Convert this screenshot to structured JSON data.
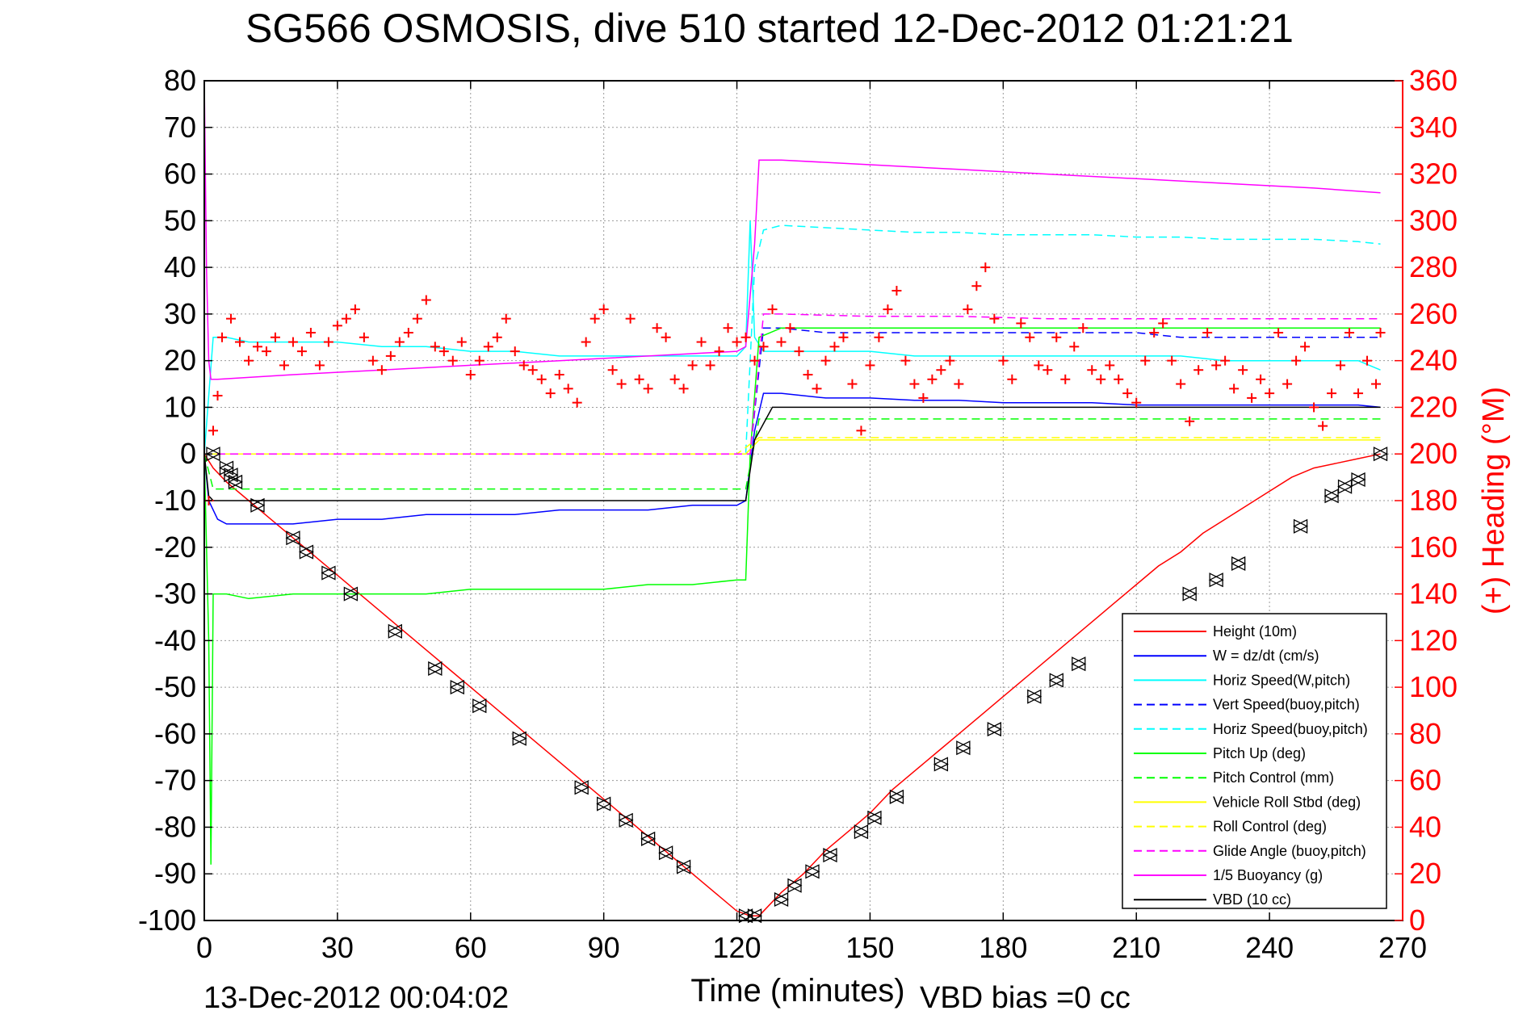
{
  "chart_data": {
    "type": "line",
    "title": "SG566 OSMOSIS, dive 510 started 12-Dec-2012 01:21:21",
    "xlabel": "Time (minutes)",
    "ylabel_right": "(+) Heading (°M)",
    "footer_left": "13-Dec-2012 00:04:02",
    "footer_right": "VBD bias =0 cc",
    "xlim": [
      0,
      270
    ],
    "ylim": [
      -100,
      80
    ],
    "ylim_right": [
      0,
      360
    ],
    "x_ticks": [
      "0",
      "30",
      "60",
      "90",
      "120",
      "150",
      "180",
      "210",
      "240",
      "270"
    ],
    "y_ticks": [
      "80",
      "70",
      "60",
      "50",
      "40",
      "30",
      "20",
      "10",
      "0",
      "-10",
      "-20",
      "-30",
      "-40",
      "-50",
      "-60",
      "-70",
      "-80",
      "-90",
      "-100"
    ],
    "y_right_ticks": [
      "360",
      "340",
      "320",
      "300",
      "280",
      "260",
      "240",
      "220",
      "200",
      "180",
      "160",
      "140",
      "120",
      "100",
      "80",
      "60",
      "40",
      "20",
      "0"
    ],
    "grid": true,
    "legend_position": "bottom-right",
    "colors": {
      "red": "#ff0000",
      "blue": "#0000ff",
      "cyan": "#00ffff",
      "green": "#00ff00",
      "yellow": "#ffff00",
      "magenta": "#ff00ff",
      "black": "#000000"
    },
    "series": [
      {
        "name": "Height (10m)",
        "color": "#ff0000",
        "style": "solid",
        "x": [
          0,
          2,
          5,
          10,
          15,
          20,
          25,
          30,
          35,
          40,
          45,
          50,
          55,
          60,
          65,
          70,
          75,
          80,
          85,
          90,
          95,
          100,
          105,
          110,
          115,
          120,
          123,
          125,
          130,
          135,
          140,
          145,
          150,
          155,
          160,
          165,
          170,
          175,
          180,
          185,
          190,
          195,
          200,
          205,
          210,
          215,
          220,
          225,
          230,
          235,
          240,
          245,
          250,
          255,
          260,
          265
        ],
        "y": [
          0,
          -3,
          -6,
          -10,
          -14,
          -18,
          -22,
          -26,
          -30,
          -34,
          -38,
          -42,
          -46,
          -50,
          -54,
          -58,
          -62,
          -66,
          -70,
          -74,
          -78,
          -82,
          -86,
          -90,
          -94,
          -98,
          -99,
          -99,
          -94,
          -90,
          -85,
          -81,
          -77,
          -72,
          -68,
          -64,
          -60,
          -56,
          -52,
          -48,
          -44,
          -40,
          -36,
          -32,
          -28,
          -24,
          -21,
          -17,
          -14,
          -11,
          -8,
          -5,
          -3,
          -2,
          -1,
          0
        ]
      },
      {
        "name": "W = dz/dt (cm/s)",
        "color": "#0000ff",
        "style": "solid",
        "x": [
          0,
          1,
          3,
          5,
          10,
          20,
          30,
          40,
          50,
          60,
          70,
          80,
          90,
          100,
          110,
          120,
          122,
          124,
          126,
          130,
          140,
          150,
          160,
          170,
          180,
          190,
          200,
          210,
          220,
          230,
          240,
          250,
          260,
          265
        ],
        "y": [
          0,
          -10,
          -14,
          -15,
          -15,
          -15,
          -14,
          -14,
          -13,
          -13,
          -13,
          -12,
          -12,
          -12,
          -11,
          -11,
          -10,
          5,
          13,
          13,
          12,
          12,
          11.5,
          11.5,
          11,
          11,
          11,
          10.5,
          10.5,
          10.5,
          10.5,
          10.5,
          10.5,
          10
        ]
      },
      {
        "name": "Horiz Speed(W,pitch)",
        "color": "#00ffff",
        "style": "solid",
        "x": [
          0,
          2,
          5,
          10,
          20,
          30,
          40,
          50,
          60,
          70,
          80,
          90,
          100,
          110,
          120,
          122,
          123,
          124,
          126,
          130,
          140,
          150,
          160,
          170,
          180,
          190,
          200,
          210,
          220,
          230,
          240,
          250,
          260,
          265
        ],
        "y": [
          0,
          25,
          25,
          24,
          24,
          24,
          23,
          23,
          22,
          22,
          21,
          21,
          21,
          21,
          21,
          23,
          50,
          25,
          22,
          22,
          22,
          22,
          21,
          21,
          21,
          21,
          21,
          21,
          21,
          20,
          20,
          20,
          20,
          18
        ]
      },
      {
        "name": "Vert Speed(buoy,pitch)",
        "color": "#0000ff",
        "style": "dashed",
        "x": [
          0,
          2,
          5,
          120,
          123,
          126,
          130,
          140,
          150,
          160,
          170,
          180,
          190,
          200,
          210,
          220,
          230,
          240,
          250,
          260,
          265
        ],
        "y": [
          0,
          0,
          0,
          0,
          0,
          27,
          27,
          26,
          26,
          26,
          26,
          26,
          26,
          26,
          26,
          25,
          25,
          25,
          25,
          25,
          25
        ]
      },
      {
        "name": "Horiz Speed(buoy,pitch)",
        "color": "#00ffff",
        "style": "dashed",
        "x": [
          0,
          2,
          5,
          120,
          122,
          124,
          126,
          130,
          140,
          150,
          160,
          170,
          180,
          190,
          200,
          210,
          220,
          230,
          240,
          250,
          260,
          265
        ],
        "y": [
          0,
          0,
          0,
          0,
          0,
          40,
          48,
          49,
          48.5,
          48,
          47.5,
          47.5,
          47,
          47,
          47,
          46.5,
          46.5,
          46,
          46,
          46,
          45.5,
          45
        ]
      },
      {
        "name": "Pitch Up (deg)",
        "color": "#00ff00",
        "style": "solid",
        "x": [
          0,
          1,
          1.5,
          2,
          3,
          5,
          10,
          20,
          30,
          40,
          50,
          60,
          70,
          80,
          90,
          100,
          110,
          120,
          122,
          123,
          125,
          130,
          140,
          150,
          160,
          170,
          180,
          190,
          200,
          210,
          220,
          230,
          240,
          250,
          260,
          265
        ],
        "y": [
          0,
          -40,
          -88,
          -30,
          -30,
          -30,
          -31,
          -30,
          -30,
          -30,
          -30,
          -29,
          -29,
          -29,
          -29,
          -28,
          -28,
          -27,
          -27,
          0,
          25,
          27,
          27,
          27,
          27,
          27,
          27,
          27,
          27,
          27,
          27,
          27,
          27,
          27,
          27,
          27
        ]
      },
      {
        "name": "Pitch Control (mm)",
        "color": "#00ff00",
        "style": "dashed",
        "x": [
          0,
          2,
          5,
          120,
          122,
          125,
          130,
          265
        ],
        "y": [
          0,
          -7.5,
          -7.5,
          -7.5,
          -7.5,
          7.5,
          7.5,
          7.5
        ]
      },
      {
        "name": "Vehicle Roll Stbd (deg)",
        "color": "#ffff00",
        "style": "solid",
        "x": [
          0,
          5,
          20,
          40,
          60,
          80,
          100,
          120,
          122,
          125,
          130,
          150,
          170,
          190,
          210,
          230,
          250,
          265
        ],
        "y": [
          0,
          0,
          0,
          0,
          0,
          0,
          0,
          0,
          0,
          3,
          3,
          3,
          3,
          3,
          3,
          3,
          3,
          3
        ]
      },
      {
        "name": "Roll Control (deg)",
        "color": "#ffff00",
        "style": "dashed",
        "x": [
          0,
          5,
          20,
          40,
          60,
          80,
          100,
          120,
          125,
          265
        ],
        "y": [
          0,
          0,
          0,
          0,
          0,
          0,
          0,
          0,
          3.5,
          3.5
        ]
      },
      {
        "name": "Glide Angle (buoy,pitch)",
        "color": "#ff00ff",
        "style": "dashed",
        "x": [
          0,
          5,
          120,
          123,
          126,
          130,
          150,
          170,
          190,
          210,
          230,
          250,
          265
        ],
        "y": [
          0,
          0,
          0,
          0,
          30,
          30,
          29.5,
          29.5,
          29,
          29,
          29,
          29,
          29
        ]
      },
      {
        "name": "1/5 Buoyancy (g)",
        "color": "#ff00ff",
        "style": "solid",
        "x": [
          0,
          0.5,
          1,
          1.5,
          3,
          20,
          40,
          60,
          80,
          100,
          120,
          122,
          124,
          125,
          130,
          150,
          170,
          190,
          210,
          230,
          250,
          265
        ],
        "y": [
          80,
          40,
          20,
          16,
          16,
          17,
          18,
          19,
          20,
          21,
          22,
          23,
          45,
          63,
          63,
          62,
          61,
          60,
          59,
          58,
          57,
          56
        ]
      },
      {
        "name": "VBD (10 cc)",
        "color": "#000000",
        "style": "solid",
        "x": [
          0,
          1,
          2,
          5,
          120,
          122,
          124,
          128,
          130,
          265
        ],
        "y": [
          0,
          -9,
          -10,
          -10,
          -10,
          -10,
          3,
          10,
          10,
          10
        ]
      }
    ],
    "heading_series": {
      "name": "(+) Heading",
      "axis": "right",
      "color": "#ff0000",
      "marker": "+",
      "x": [
        1,
        2,
        3,
        4,
        6,
        8,
        10,
        12,
        14,
        16,
        18,
        20,
        22,
        24,
        26,
        28,
        30,
        32,
        34,
        36,
        38,
        40,
        42,
        44,
        46,
        48,
        50,
        52,
        54,
        56,
        58,
        60,
        62,
        64,
        66,
        68,
        70,
        72,
        74,
        76,
        78,
        80,
        82,
        84,
        86,
        88,
        90,
        92,
        94,
        96,
        98,
        100,
        102,
        104,
        106,
        108,
        110,
        112,
        114,
        116,
        118,
        120,
        122,
        124,
        126,
        128,
        130,
        132,
        134,
        136,
        138,
        140,
        142,
        144,
        146,
        148,
        150,
        152,
        154,
        156,
        158,
        160,
        162,
        164,
        166,
        168,
        170,
        172,
        174,
        176,
        178,
        180,
        182,
        184,
        186,
        188,
        190,
        192,
        194,
        196,
        198,
        200,
        202,
        204,
        206,
        208,
        210,
        212,
        214,
        216,
        218,
        220,
        222,
        224,
        226,
        228,
        230,
        232,
        234,
        236,
        238,
        240,
        242,
        244,
        246,
        248,
        250,
        252,
        254,
        256,
        258,
        260,
        262,
        264,
        265
      ],
      "y": [
        180,
        210,
        225,
        250,
        258,
        248,
        240,
        246,
        244,
        250,
        238,
        248,
        244,
        252,
        238,
        248,
        255,
        258,
        262,
        250,
        240,
        236,
        242,
        248,
        252,
        258,
        266,
        246,
        244,
        240,
        248,
        234,
        240,
        246,
        250,
        258,
        244,
        238,
        236,
        232,
        226,
        234,
        228,
        222,
        248,
        258,
        262,
        236,
        230,
        258,
        232,
        228,
        254,
        250,
        232,
        228,
        238,
        248,
        238,
        244,
        254,
        248,
        250,
        240,
        246,
        262,
        248,
        254,
        244,
        234,
        228,
        240,
        246,
        250,
        230,
        210,
        238,
        250,
        262,
        270,
        240,
        230,
        224,
        232,
        236,
        240,
        230,
        262,
        272,
        280,
        258,
        240,
        232,
        256,
        250,
        238,
        236,
        250,
        232,
        246,
        254,
        236,
        232,
        238,
        232,
        226,
        222,
        240,
        252,
        256,
        240,
        230,
        214,
        236,
        252,
        238,
        240,
        228,
        236,
        224,
        232,
        226,
        252,
        230,
        240,
        246,
        220,
        212,
        226,
        238,
        252,
        226,
        240,
        230,
        252
      ]
    },
    "marker_series": {
      "name": "",
      "color": "#000000",
      "marker": "triangle",
      "x": [
        2,
        5,
        6,
        7,
        12,
        20,
        23,
        28,
        33,
        43,
        52,
        57,
        62,
        71,
        85,
        90,
        95,
        100,
        104,
        108,
        122,
        124,
        130,
        133,
        137,
        141,
        148,
        151,
        156,
        166,
        171,
        178,
        187,
        192,
        197,
        222,
        228,
        233,
        247,
        254,
        257,
        260,
        265
      ],
      "y": [
        0,
        -3,
        -4.5,
        -6,
        -11,
        -18,
        -21,
        -25.5,
        -30,
        -38,
        -46,
        -50,
        -54,
        -61,
        -71.5,
        -75,
        -78.5,
        -82.5,
        -85.5,
        -88.5,
        -99,
        -99,
        -95.5,
        -92.5,
        -89.5,
        -86,
        -81,
        -78,
        -73.5,
        -66.5,
        -63,
        -59,
        -52,
        -48.5,
        -45,
        -30,
        -27,
        -23.5,
        -15.5,
        -9,
        -7,
        -5.5,
        0
      ]
    }
  }
}
